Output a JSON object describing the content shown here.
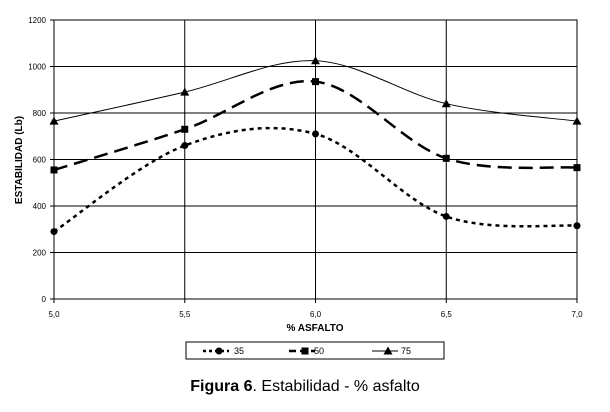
{
  "chart_data": {
    "type": "line",
    "xlabel": "% ASFALTO",
    "ylabel": "ESTABILIDAD (Lb)",
    "x": [
      5.0,
      5.5,
      6.0,
      6.5,
      7.0
    ],
    "x_tick_labels": [
      "5,0",
      "5,5",
      "6,0",
      "6,5",
      "7,0"
    ],
    "ylim": [
      0,
      1200
    ],
    "y_ticks": [
      0,
      200,
      400,
      600,
      800,
      1000,
      1200
    ],
    "y_tick_labels": [
      "0",
      "200",
      "400",
      "600",
      "800",
      "1000",
      "1200"
    ],
    "grid": true,
    "legend_position": "bottom",
    "series": [
      {
        "name": "35",
        "values": [
          290,
          660,
          710,
          355,
          315
        ],
        "line": "dotted",
        "marker": "circle",
        "color": "#000000"
      },
      {
        "name": "50",
        "values": [
          555,
          730,
          935,
          605,
          565
        ],
        "line": "dashed",
        "marker": "square",
        "color": "#000000"
      },
      {
        "name": "75",
        "values": [
          765,
          890,
          1025,
          840,
          765
        ],
        "line": "solid",
        "marker": "triangle",
        "color": "#000000"
      }
    ]
  },
  "caption": {
    "label": "Figura 6",
    "text": ". Estabilidad - % asfalto"
  }
}
